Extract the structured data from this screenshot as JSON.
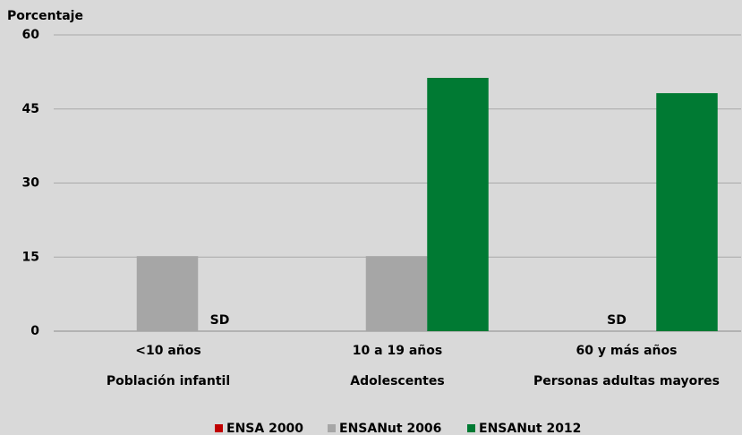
{
  "chart_data": {
    "type": "bar",
    "y_label": "Porcentaje",
    "categories": [
      "<10 años",
      "10 a 19 años",
      "60 y más años"
    ],
    "category_groups": [
      "Población infantil",
      "Adolescentes",
      "Personas adultas mayores"
    ],
    "series": [
      {
        "name": "ENSA 2000",
        "color": "#c00000",
        "values": [
          null,
          null,
          null
        ]
      },
      {
        "name": "ENSANut 2006",
        "color": "#a6a6a6",
        "values": [
          15.2,
          15.2,
          null
        ],
        "value_labels": [
          null,
          null,
          "SD"
        ]
      },
      {
        "name": "ENSANut 2012",
        "color": "#007a33",
        "values": [
          null,
          51.3,
          48.2
        ],
        "value_labels": [
          "SD",
          null,
          null
        ]
      }
    ],
    "ylim": [
      0,
      60
    ],
    "yticks": [
      0,
      15,
      30,
      45,
      60
    ],
    "grid": true,
    "legend": "bottom"
  }
}
